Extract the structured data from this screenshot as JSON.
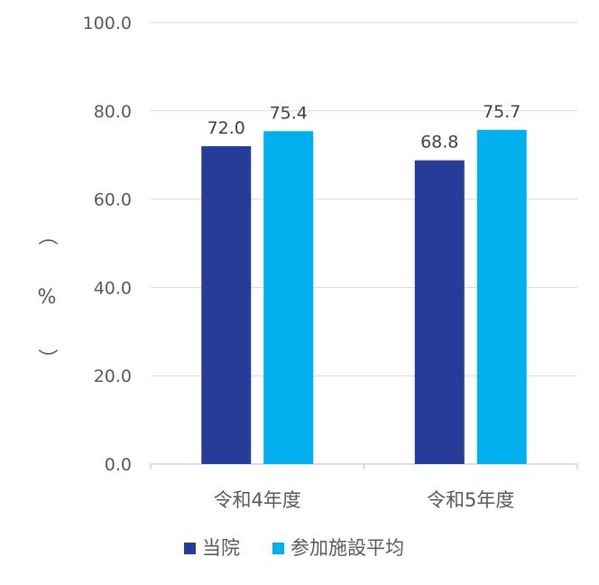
{
  "chart_data": {
    "type": "bar",
    "title": "",
    "xlabel": "",
    "ylabel": "（%）",
    "ylabel_parts": [
      "（",
      "%",
      "）"
    ],
    "ylim": [
      0,
      100
    ],
    "yticks": [
      "0.0",
      "20.0",
      "40.0",
      "60.0",
      "80.0",
      "100.0"
    ],
    "grid": true,
    "legend": "bottom",
    "categories": [
      "令和4年度",
      "令和5年度"
    ],
    "series": [
      {
        "name": "当院",
        "values": [
          72.0,
          68.8
        ],
        "labels": [
          "72.0",
          "68.8"
        ],
        "color": "#253D98"
      },
      {
        "name": "参加施設平均",
        "values": [
          75.4,
          75.7
        ],
        "labels": [
          "75.4",
          "75.7"
        ],
        "color": "#00B0EE"
      }
    ]
  }
}
